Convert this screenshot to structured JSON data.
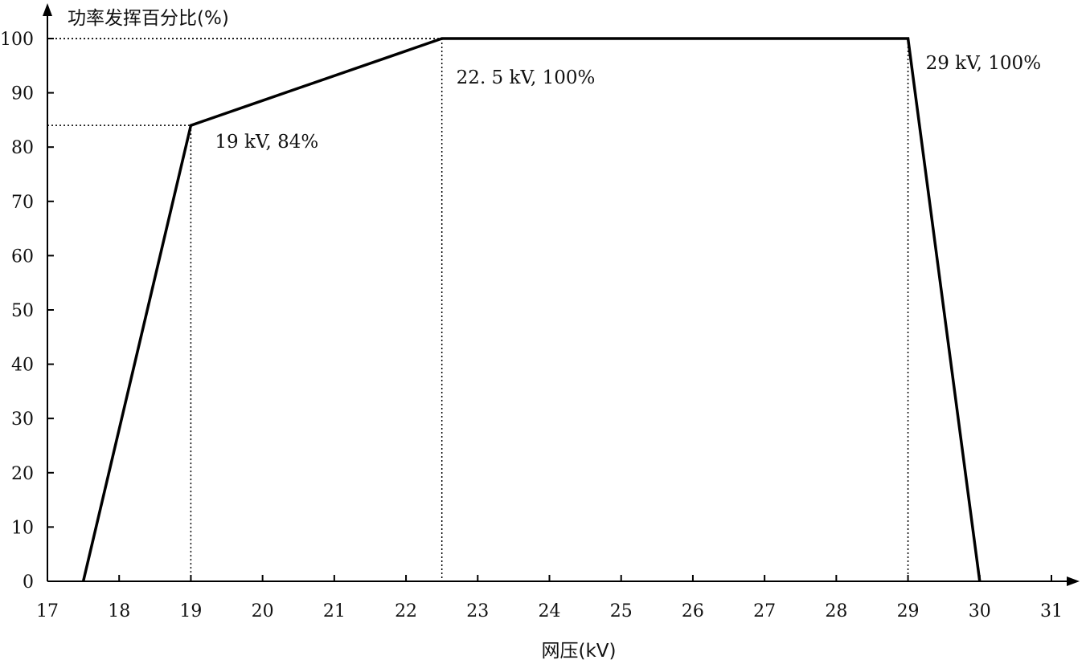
{
  "chart_data": {
    "type": "line",
    "ylabel": "功率发挥百分比(%)",
    "xlabel": "网压(kV)",
    "xlim": [
      17,
      31
    ],
    "ylim": [
      0,
      100
    ],
    "x_ticks": [
      17,
      18,
      19,
      20,
      21,
      22,
      23,
      24,
      25,
      26,
      27,
      28,
      29,
      30,
      31
    ],
    "y_ticks": [
      0,
      10,
      20,
      30,
      40,
      50,
      60,
      70,
      80,
      90,
      100
    ],
    "grid": false,
    "series": [
      {
        "x": [
          17.5,
          19,
          22.5,
          29,
          30
        ],
        "y": [
          0,
          84,
          100,
          100,
          0
        ]
      }
    ],
    "reference_lines": [
      {
        "x": 19,
        "y": 84
      },
      {
        "x": 22.5,
        "y": 100
      },
      {
        "x": 29,
        "y": 100
      }
    ],
    "annotations": [
      {
        "text": "19 kV, 84%",
        "x": 19,
        "y": 84
      },
      {
        "text": "22. 5 kV, 100%",
        "x": 22.5,
        "y": 100
      },
      {
        "text": "29 kV, 100%",
        "x": 29,
        "y": 100
      }
    ]
  }
}
